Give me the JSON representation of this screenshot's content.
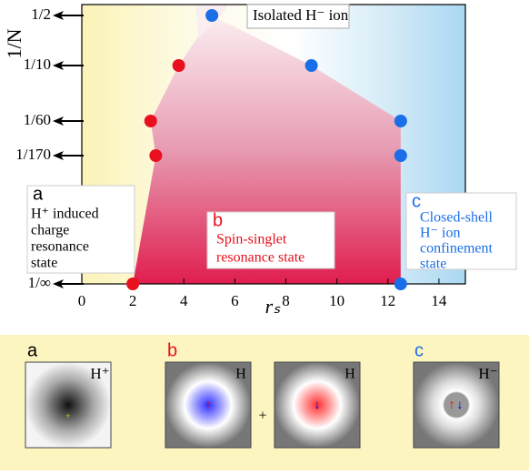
{
  "chart_data": {
    "type": "scatter",
    "xlabel": "rₛ",
    "ylabel": "1/N",
    "xlim": [
      0,
      15
    ],
    "xticks": [
      0,
      2,
      4,
      6,
      8,
      10,
      12,
      14
    ],
    "ylim": [
      0,
      0.5
    ],
    "yticks": [
      {
        "value": 0.5,
        "label": "1/2"
      },
      {
        "value": 0.1,
        "label": "1/10"
      },
      {
        "value": 0.016667,
        "label": "1/60"
      },
      {
        "value": 0.005882,
        "label": "1/170"
      },
      {
        "value": 0,
        "label": "1/∞"
      }
    ],
    "series": [
      {
        "color": "#e8101e",
        "x": [
          2,
          2.9,
          2.7,
          3.8
        ],
        "values": [
          0,
          0.005882,
          0.016667,
          0.1
        ]
      },
      {
        "color": "#1a6ee8",
        "x": [
          5.1,
          9,
          12.5,
          12.5,
          12.5
        ],
        "values": [
          0.5,
          0.1,
          0.016667,
          0.005882,
          0
        ]
      }
    ],
    "annotations": {
      "top": "Isolated H⁻ ion",
      "a": {
        "letter": "a",
        "lines": [
          "H⁺ induced",
          "charge",
          "resonance",
          "state"
        ]
      },
      "b": {
        "letter": "b",
        "lines": [
          "Spin-singlet",
          "resonance state"
        ]
      },
      "c": {
        "letter": "c",
        "lines": [
          "Closed-shell",
          "H⁻ ion",
          "confinement",
          "state"
        ]
      }
    }
  },
  "panels": [
    {
      "letter": "a",
      "labels": [
        "H⁺"
      ]
    },
    {
      "letter": "b",
      "labels": [
        "H",
        "+",
        "H"
      ]
    },
    {
      "letter": "c",
      "labels": [
        "H⁻"
      ]
    }
  ]
}
